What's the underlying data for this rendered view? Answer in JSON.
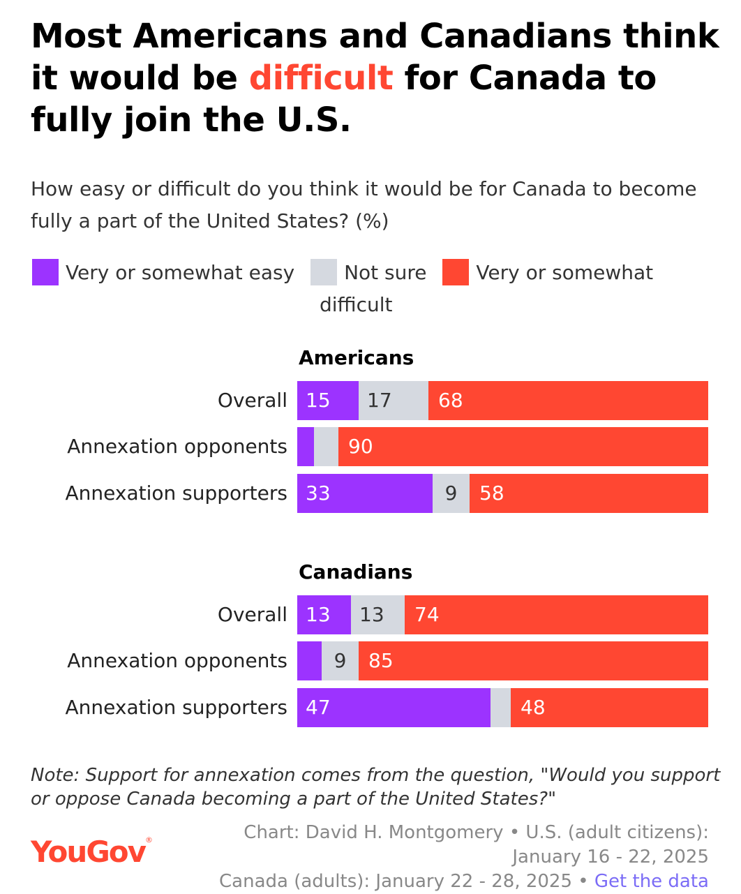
{
  "title": {
    "part1": "Most Americans and Canadians think it would be ",
    "highlight": "difficult",
    "part2": " for Canada to fully join the U.S."
  },
  "subtitle": "How easy or difficult do you think it would be for Canada to become fully a part of the United States? (%)",
  "legend": [
    {
      "label": "Very or somewhat easy",
      "color": "#9c33ff"
    },
    {
      "label": "Not sure",
      "color": "#d5d9e0"
    },
    {
      "label_line1": "Very or somewhat",
      "label_line2": "difficult",
      "color": "#ff4732"
    }
  ],
  "chart_data": {
    "type": "bar",
    "orientation": "horizontal-stacked-100",
    "title": "How easy or difficult do you think it would be for Canada to become fully a part of the United States? (%)",
    "series_names": [
      "Very or somewhat easy",
      "Not sure",
      "Very or somewhat difficult"
    ],
    "colors": [
      "#9c33ff",
      "#d5d9e0",
      "#ff4732"
    ],
    "groups": [
      {
        "name": "Americans",
        "rows": [
          {
            "label": "Overall",
            "values": [
              15,
              17,
              68
            ],
            "show": [
              true,
              true,
              true
            ]
          },
          {
            "label": "Annexation opponents",
            "values": [
              4,
              6,
              90
            ],
            "show": [
              false,
              false,
              true
            ]
          },
          {
            "label": "Annexation supporters",
            "values": [
              33,
              9,
              58
            ],
            "show": [
              true,
              true,
              true
            ]
          }
        ]
      },
      {
        "name": "Canadians",
        "rows": [
          {
            "label": "Overall",
            "values": [
              13,
              13,
              74
            ],
            "show": [
              true,
              true,
              true
            ]
          },
          {
            "label": "Annexation opponents",
            "values": [
              6,
              9,
              85
            ],
            "show": [
              false,
              true,
              true
            ]
          },
          {
            "label": "Annexation supporters",
            "values": [
              47,
              5,
              48
            ],
            "show": [
              true,
              false,
              true
            ]
          }
        ]
      }
    ]
  },
  "note": "Note: Support for annexation comes from the question, \"Would you support or oppose Canada becoming a part of the United States?\"",
  "logo": "YouGov",
  "source": {
    "line1": "Chart: David H. Montgomery • U.S. (adult citizens):",
    "line2": "January 16 - 22, 2025",
    "line3": "Canada (adults): January 22 - 28, 2025 • ",
    "link": "Get the data"
  }
}
